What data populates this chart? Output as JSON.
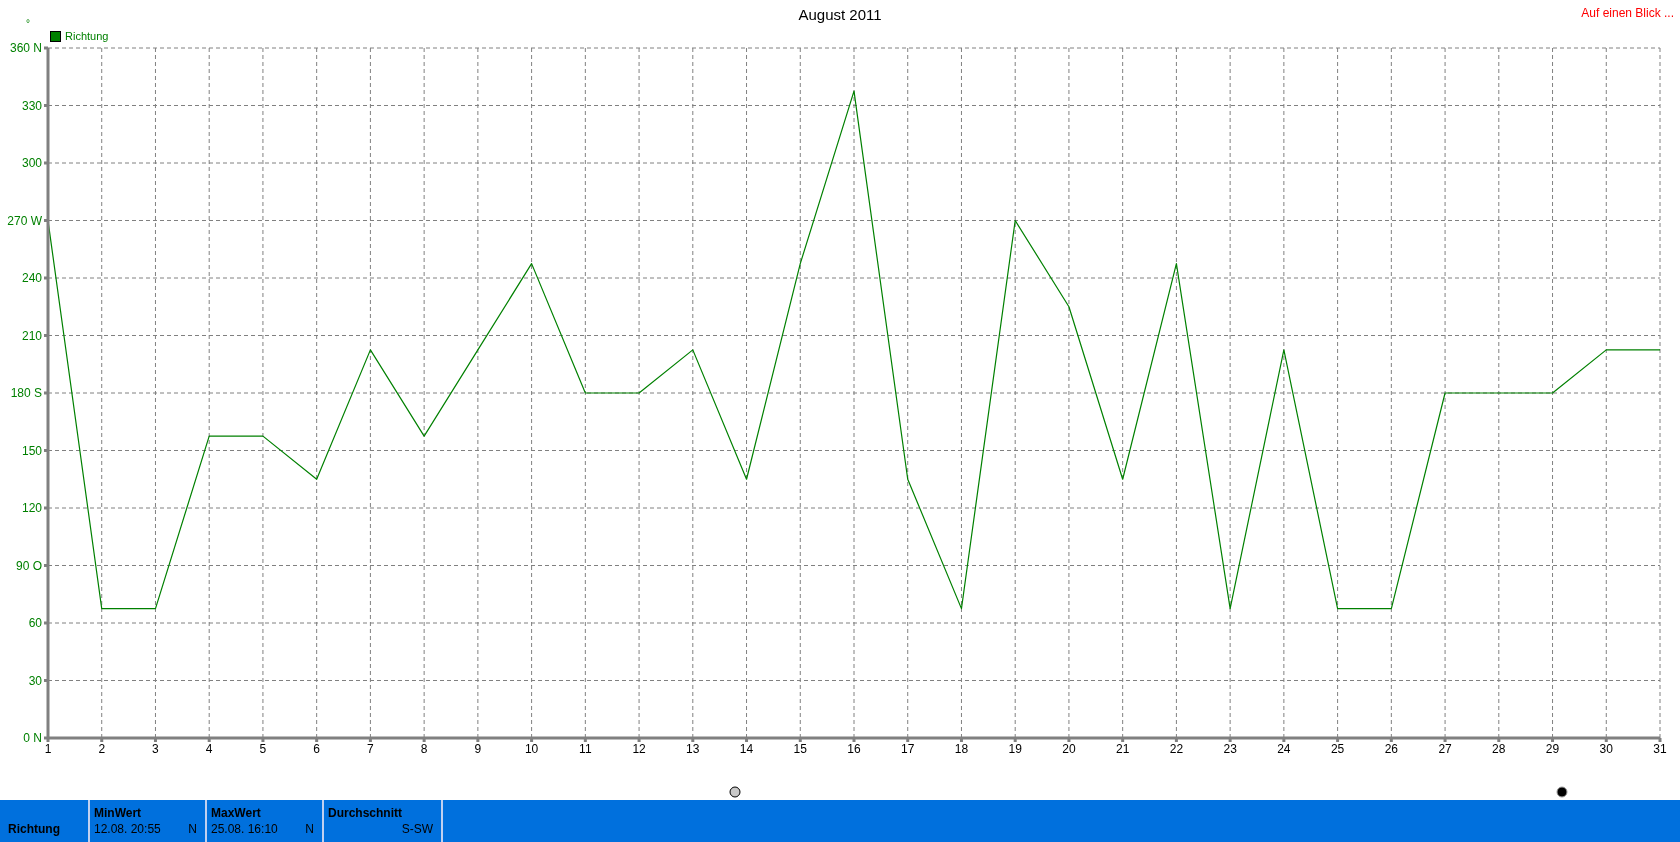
{
  "chart_data": {
    "type": "line",
    "title": "August 2011",
    "ylabel": "°",
    "legend": "top left",
    "grid": true,
    "marker": "none",
    "line_style": "solid",
    "x": [
      1,
      2,
      3,
      4,
      5,
      6,
      7,
      8,
      9,
      10,
      11,
      12,
      13,
      14,
      15,
      16,
      17,
      18,
      19,
      20,
      21,
      22,
      23,
      24,
      25,
      26,
      27,
      28,
      29,
      30,
      31
    ],
    "series": [
      {
        "name": "Richtung",
        "color": "#008000",
        "values": [
          270,
          67.5,
          67.5,
          157.5,
          157.5,
          135,
          202.5,
          157.5,
          202.5,
          247.5,
          180,
          180,
          202.5,
          135,
          247.5,
          337.5,
          135,
          67.5,
          270,
          225,
          135,
          247.5,
          67.5,
          202.5,
          67.5,
          67.5,
          180,
          180,
          180,
          202.5,
          202.5
        ]
      }
    ],
    "xlim": [
      1,
      31
    ],
    "xticks": [
      1,
      2,
      3,
      4,
      5,
      6,
      7,
      8,
      9,
      10,
      11,
      12,
      13,
      14,
      15,
      16,
      17,
      18,
      19,
      20,
      21,
      22,
      23,
      24,
      25,
      26,
      27,
      28,
      29,
      30,
      31
    ],
    "ylim": [
      0,
      360
    ],
    "yticks": [
      {
        "value": 0,
        "label": "0 N"
      },
      30,
      60,
      {
        "value": 90,
        "label": "90 O"
      },
      120,
      150,
      {
        "value": 180,
        "label": "180 S"
      },
      210,
      240,
      {
        "value": 270,
        "label": "270 W"
      },
      300,
      330,
      {
        "value": 360,
        "label": "360 N"
      }
    ],
    "annotations": [
      "Auf einen Blick ...",
      "Richtung",
      "MinWert",
      "12.08.  20:55",
      "N",
      "MaxWert",
      "25.08.  16:10",
      "N",
      "Durchschnitt",
      "S-SW"
    ]
  }
}
